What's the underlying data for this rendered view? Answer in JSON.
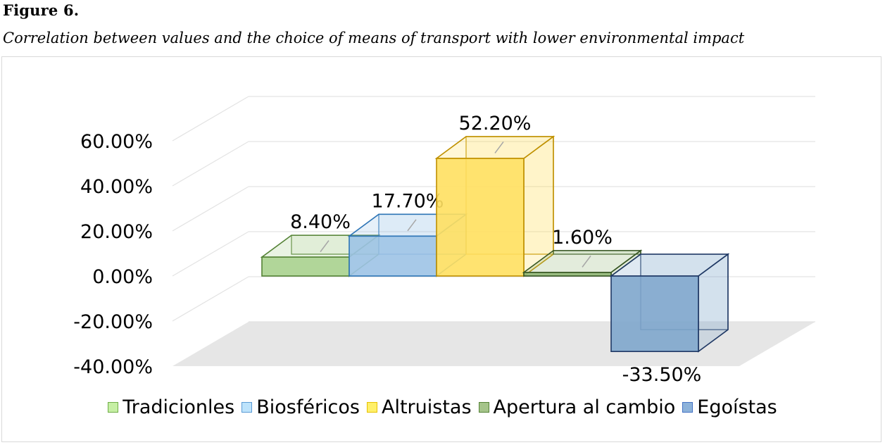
{
  "figure": {
    "title": "Figure 6.",
    "subtitle": "Correlation between values and the choice of means of transport with lower environmental impact"
  },
  "chart_data": {
    "type": "bar",
    "style": "3d-column",
    "title": "",
    "xlabel": "",
    "ylabel": "",
    "ylim": [
      -0.4,
      0.6
    ],
    "yticks": [
      "60.00%",
      "40.00%",
      "20.00%",
      "0.00%",
      "-20.00%",
      "-40.00%"
    ],
    "ytick_values": [
      0.6,
      0.4,
      0.2,
      0.0,
      -0.2,
      -0.4
    ],
    "grid": true,
    "legend_position": "bottom",
    "series": [
      {
        "name": "Tradicionles",
        "value": 0.084,
        "label": "8.40%",
        "color": "#a9d18e",
        "edge": "#548235"
      },
      {
        "name": "Biosféricos",
        "value": 0.177,
        "label": "17.70%",
        "color": "#9dc3e6",
        "edge": "#2e75b6"
      },
      {
        "name": "Altruistas",
        "value": 0.522,
        "label": "52.20%",
        "color": "#ffe060",
        "edge": "#bf9000"
      },
      {
        "name": "Apertura al cambio",
        "value": 0.016,
        "label": "1.60%",
        "color": "#8fb573",
        "edge": "#375623"
      },
      {
        "name": "Egoístas",
        "value": -0.335,
        "label": "-33.50%",
        "color": "#7ea6cc",
        "edge": "#1f3864"
      }
    ]
  },
  "legend": {
    "swatch_colors": [
      "#c6efa4",
      "#bde3fb",
      "#fff06a",
      "#a5c48a",
      "#8cb2da"
    ],
    "swatch_edges": [
      "#70ad47",
      "#5b9bd5",
      "#e6c100",
      "#548235",
      "#4472c4"
    ]
  }
}
